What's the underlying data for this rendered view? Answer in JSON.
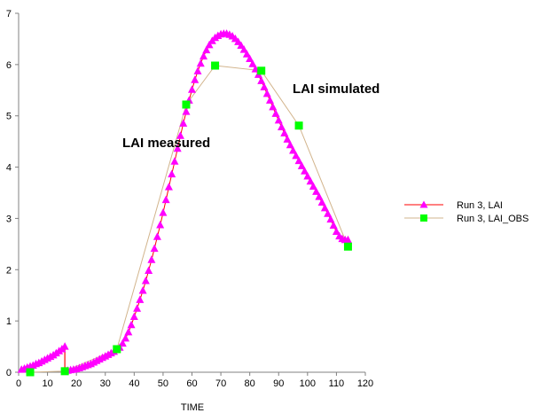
{
  "chart_data": {
    "type": "line",
    "xlabel": "TIME",
    "ylabel": "",
    "xlim": [
      0,
      120
    ],
    "ylim": [
      0,
      7
    ],
    "xticks": [
      0,
      10,
      20,
      30,
      40,
      50,
      60,
      70,
      80,
      90,
      100,
      110,
      120
    ],
    "yticks": [
      0,
      1,
      2,
      3,
      4,
      5,
      6,
      7
    ],
    "grid": false,
    "legend_position": "right",
    "annotations": [
      "LAI measured",
      "LAI simulated"
    ],
    "series": [
      {
        "name": "Run 3, LAI",
        "line_color": "#ff0000",
        "marker": "triangle",
        "marker_color": "#ff00ff",
        "x": [
          1,
          2,
          3,
          4,
          5,
          6,
          7,
          8,
          9,
          10,
          11,
          12,
          13,
          14,
          15,
          16,
          17,
          18,
          19,
          20,
          21,
          22,
          23,
          24,
          25,
          26,
          27,
          28,
          29,
          30,
          31,
          32,
          33,
          34,
          35,
          36,
          37,
          38,
          39,
          40,
          41,
          42,
          43,
          44,
          45,
          46,
          47,
          48,
          49,
          50,
          51,
          52,
          53,
          54,
          55,
          56,
          57,
          58,
          59,
          60,
          61,
          62,
          63,
          64,
          65,
          66,
          67,
          68,
          69,
          70,
          71,
          72,
          73,
          74,
          75,
          76,
          77,
          78,
          79,
          80,
          81,
          82,
          83,
          84,
          85,
          86,
          87,
          88,
          89,
          90,
          91,
          92,
          93,
          94,
          95,
          96,
          97,
          98,
          99,
          100,
          101,
          102,
          103,
          104,
          105,
          106,
          107,
          108,
          109,
          110,
          111,
          112,
          113,
          114
        ],
        "y": [
          0.05,
          0.07,
          0.09,
          0.11,
          0.13,
          0.16,
          0.18,
          0.21,
          0.24,
          0.27,
          0.3,
          0.33,
          0.37,
          0.41,
          0.45,
          0.5,
          0.03,
          0.04,
          0.05,
          0.06,
          0.08,
          0.1,
          0.12,
          0.14,
          0.16,
          0.19,
          0.22,
          0.25,
          0.28,
          0.31,
          0.34,
          0.37,
          0.4,
          0.44,
          0.48,
          0.56,
          0.66,
          0.78,
          0.92,
          1.08,
          1.24,
          1.41,
          1.59,
          1.78,
          1.98,
          2.19,
          2.41,
          2.64,
          2.87,
          3.11,
          3.36,
          3.61,
          3.86,
          4.11,
          4.36,
          4.61,
          4.85,
          5.08,
          5.3,
          5.51,
          5.7,
          5.87,
          6.02,
          6.16,
          6.28,
          6.38,
          6.46,
          6.52,
          6.56,
          6.59,
          6.6,
          6.6,
          6.58,
          6.55,
          6.5,
          6.44,
          6.37,
          6.29,
          6.2,
          6.11,
          6.01,
          5.91,
          5.8,
          5.68,
          5.56,
          5.43,
          5.3,
          5.17,
          5.04,
          4.91,
          4.78,
          4.66,
          4.54,
          4.43,
          4.32,
          4.22,
          4.12,
          4.02,
          3.92,
          3.82,
          3.72,
          3.62,
          3.52,
          3.42,
          3.31,
          3.2,
          3.09,
          2.98,
          2.86,
          2.74,
          2.65,
          2.6,
          2.58,
          2.58
        ]
      },
      {
        "name": "Run 3, LAI_OBS",
        "line_color": "#d2b48c",
        "marker": "square",
        "marker_color": "#00ff00",
        "x": [
          4,
          16,
          34,
          58,
          68,
          84,
          97,
          114
        ],
        "y": [
          0.0,
          0.02,
          0.45,
          5.22,
          5.98,
          5.88,
          4.81,
          2.45
        ]
      }
    ]
  }
}
